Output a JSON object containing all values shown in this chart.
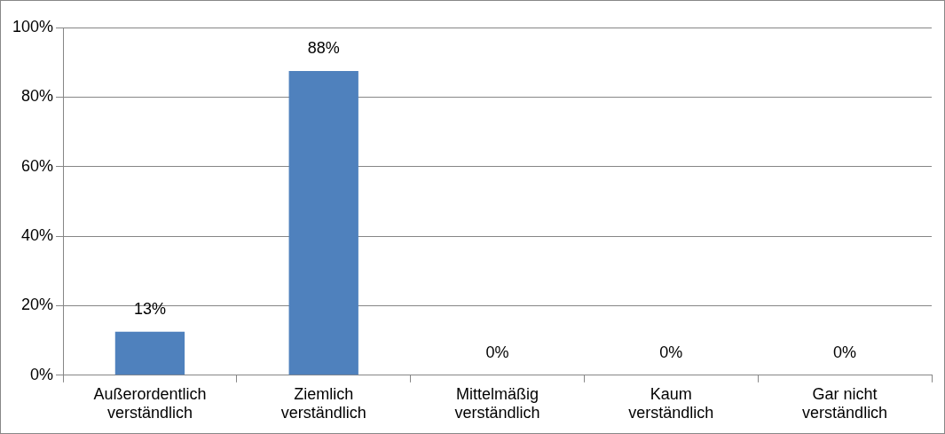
{
  "chart_data": {
    "type": "bar",
    "categories": [
      "Außerordentlich verständlich",
      "Ziemlich verständlich",
      "Mittelmäßig verständlich",
      "Kaum verständlich",
      "Gar nicht verständlich"
    ],
    "values": [
      12.5,
      87.5,
      0,
      0,
      0
    ],
    "value_labels": [
      "13%",
      "88%",
      "0%",
      "0%",
      "0%"
    ],
    "color": "#4f81bd",
    "ylim": [
      0,
      100
    ],
    "yticks": [
      {
        "value": 0,
        "label": "0%"
      },
      {
        "value": 20,
        "label": "20%"
      },
      {
        "value": 40,
        "label": "40%"
      },
      {
        "value": 60,
        "label": "60%"
      },
      {
        "value": 80,
        "label": "80%"
      },
      {
        "value": 100,
        "label": "100%"
      }
    ],
    "grid": "y",
    "legend": false
  }
}
